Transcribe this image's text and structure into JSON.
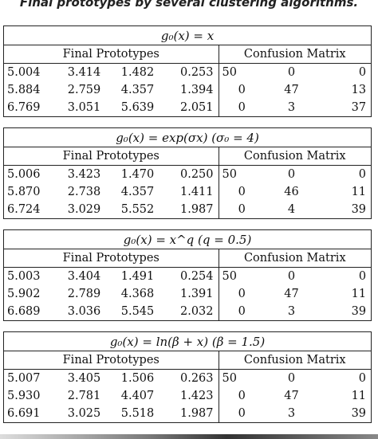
{
  "caption": "Final prototypes by several clustering algorithms.",
  "column_headers": {
    "prototypes": "Final Prototypes",
    "confusion": "Confusion Matrix"
  },
  "panels": [
    {
      "title": "g₀(x) = x",
      "rows": [
        {
          "p": [
            "5.004",
            "3.414",
            "1.482",
            "0.253"
          ],
          "c": [
            "50",
            "0",
            "0"
          ]
        },
        {
          "p": [
            "5.884",
            "2.759",
            "4.357",
            "1.394"
          ],
          "c": [
            "0",
            "47",
            "13"
          ]
        },
        {
          "p": [
            "6.769",
            "3.051",
            "5.639",
            "2.051"
          ],
          "c": [
            "0",
            "3",
            "37"
          ]
        }
      ]
    },
    {
      "title": "g₀(x) = exp(σx)  (σ₀ = 4)",
      "rows": [
        {
          "p": [
            "5.006",
            "3.423",
            "1.470",
            "0.250"
          ],
          "c": [
            "50",
            "0",
            "0"
          ]
        },
        {
          "p": [
            "5.870",
            "2.738",
            "4.357",
            "1.411"
          ],
          "c": [
            "0",
            "46",
            "11"
          ]
        },
        {
          "p": [
            "6.724",
            "3.029",
            "5.552",
            "1.987"
          ],
          "c": [
            "0",
            "4",
            "39"
          ]
        }
      ]
    },
    {
      "title": "g₀(x) = x^q  (q = 0.5)",
      "rows": [
        {
          "p": [
            "5.003",
            "3.404",
            "1.491",
            "0.254"
          ],
          "c": [
            "50",
            "0",
            "0"
          ]
        },
        {
          "p": [
            "5.902",
            "2.789",
            "4.368",
            "1.391"
          ],
          "c": [
            "0",
            "47",
            "11"
          ]
        },
        {
          "p": [
            "6.689",
            "3.036",
            "5.545",
            "2.032"
          ],
          "c": [
            "0",
            "3",
            "39"
          ]
        }
      ]
    },
    {
      "title": "g₀(x) = ln(β + x)  (β = 1.5)",
      "rows": [
        {
          "p": [
            "5.007",
            "3.405",
            "1.506",
            "0.263"
          ],
          "c": [
            "50",
            "0",
            "0"
          ]
        },
        {
          "p": [
            "5.930",
            "2.781",
            "4.407",
            "1.423"
          ],
          "c": [
            "0",
            "47",
            "11"
          ]
        },
        {
          "p": [
            "6.691",
            "3.025",
            "5.518",
            "1.987"
          ],
          "c": [
            "0",
            "3",
            "39"
          ]
        }
      ]
    }
  ]
}
